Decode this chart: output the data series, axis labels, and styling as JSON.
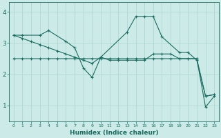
{
  "background_color": "#cceae7",
  "grid_color": "#aad4d0",
  "line_color": "#1a6b60",
  "xlabel": "Humidex (Indice chaleur)",
  "xlim": [
    -0.5,
    23.5
  ],
  "ylim": [
    0.5,
    4.3
  ],
  "yticks": [
    1,
    2,
    3,
    4
  ],
  "xticks": [
    0,
    1,
    2,
    3,
    4,
    5,
    6,
    7,
    8,
    9,
    10,
    11,
    12,
    13,
    14,
    15,
    16,
    17,
    18,
    19,
    20,
    21,
    22,
    23
  ],
  "line1": {
    "x": [
      0,
      1,
      2,
      3,
      4,
      5,
      6,
      7,
      8,
      9,
      10,
      11,
      12,
      13,
      14,
      15,
      16,
      17,
      18,
      19,
      20,
      21,
      22,
      23
    ],
    "y": [
      3.25,
      3.15,
      3.05,
      2.95,
      2.85,
      2.75,
      2.65,
      2.55,
      2.45,
      2.35,
      2.55,
      2.45,
      2.45,
      2.45,
      2.45,
      2.45,
      2.65,
      2.65,
      2.65,
      2.5,
      2.5,
      2.5,
      1.3,
      1.35
    ]
  },
  "line2": {
    "x": [
      0,
      1,
      2,
      3,
      4,
      5,
      6,
      7,
      8,
      9,
      10,
      11,
      12,
      13,
      14,
      15,
      16,
      17,
      18,
      19,
      20,
      21,
      22,
      23
    ],
    "y": [
      2.5,
      2.5,
      2.5,
      2.5,
      2.5,
      2.5,
      2.5,
      2.5,
      2.5,
      2.5,
      2.5,
      2.5,
      2.5,
      2.5,
      2.5,
      2.5,
      2.5,
      2.5,
      2.5,
      2.5,
      2.5,
      2.5,
      0.95,
      1.3
    ]
  },
  "line3": {
    "x": [
      0,
      1,
      3,
      4,
      6,
      7,
      8,
      9,
      10,
      13,
      14,
      15,
      16,
      17,
      19,
      20,
      21,
      22,
      23
    ],
    "y": [
      3.25,
      3.25,
      3.25,
      3.4,
      3.05,
      2.85,
      2.2,
      1.9,
      2.55,
      3.35,
      3.85,
      3.85,
      3.85,
      3.2,
      2.7,
      2.7,
      2.45,
      1.3,
      1.35
    ]
  }
}
